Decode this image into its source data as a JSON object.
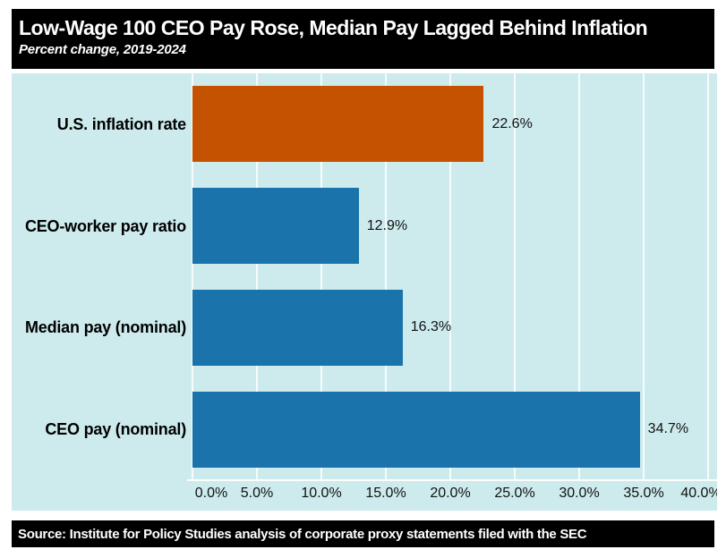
{
  "header": {
    "title": "Low-Wage 100 CEO Pay Rose, Median Pay Lagged Behind Inflation",
    "subtitle": "Percent change, 2019-2024"
  },
  "footer": {
    "source": "Source: Institute for Policy Studies analysis of corporate proxy statements filed with the SEC"
  },
  "chart_data": {
    "type": "bar",
    "orientation": "horizontal",
    "title": "Low-Wage 100 CEO Pay Rose, Median Pay Lagged Behind Inflation",
    "subtitle": "Percent change, 2019-2024",
    "categories": [
      "U.S. inflation rate",
      "CEO-worker pay ratio",
      "Median pay (nominal)",
      "CEO pay (nominal)"
    ],
    "values": [
      22.6,
      12.9,
      16.3,
      34.7
    ],
    "data_labels": [
      "22.6%",
      "12.9%",
      "16.3%",
      "34.7%"
    ],
    "bar_colors": [
      "#c55201",
      "#1a73ab",
      "#1a73ab",
      "#1a73ab"
    ],
    "x_tick_labels": [
      "0.0%",
      "5.0%",
      "10.0%",
      "15.0%",
      "20.0%",
      "25.0%",
      "30.0%",
      "35.0%",
      "40.0%"
    ],
    "xlim": [
      0,
      40
    ],
    "xlabel": "",
    "ylabel": "",
    "grid": true,
    "legend": false,
    "colors": {
      "panel_background": "#cdebed",
      "gridline": "#ffffff",
      "bar_orange": "#c55201",
      "bar_blue": "#1a73ab",
      "header_background": "#000000",
      "header_text": "#ffffff",
      "label_text": "#000000"
    }
  }
}
